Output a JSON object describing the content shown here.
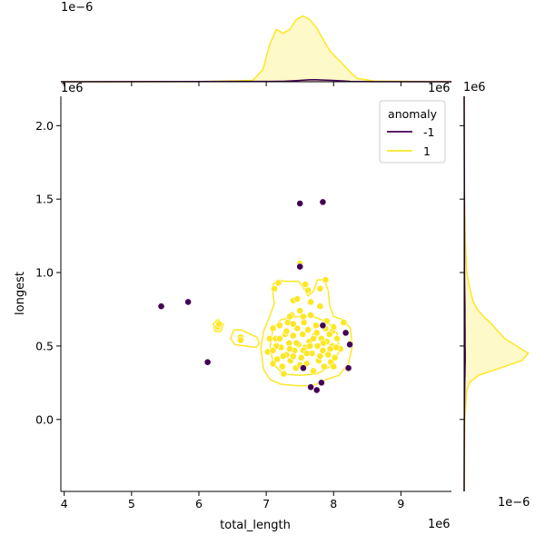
{
  "chart_data": {
    "type": "scatter",
    "xlabel": "total_length",
    "ylabel": "longest",
    "x_offset_label": "1e6",
    "y_offset_label": "1e6",
    "top_marginal_offset_label": "1e−6",
    "right_marginal_offset_label_top": "1e6",
    "right_marginal_offset_label_bottom": "1e−6",
    "top_marginal_right_offset_label": "1e6",
    "xlim": [
      3.95,
      9.75
    ],
    "ylim": [
      -0.49,
      2.2
    ],
    "x_ticks": [
      4,
      5,
      6,
      7,
      8,
      9
    ],
    "x_tick_labels": [
      "4",
      "5",
      "6",
      "7",
      "8",
      "9"
    ],
    "y_ticks": [
      0.0,
      0.5,
      1.0,
      1.5,
      2.0
    ],
    "y_tick_labels": [
      "0.0",
      "0.5",
      "1.0",
      "1.5",
      "2.0"
    ],
    "legend": {
      "title": "anomaly",
      "position": "top-right",
      "entries": [
        {
          "label": "-1",
          "color": "#440154"
        },
        {
          "label": "1",
          "color": "#fde725"
        }
      ]
    },
    "series": [
      {
        "name": "-1",
        "color": "#440154",
        "points": [
          [
            5.44,
            0.77
          ],
          [
            5.84,
            0.8
          ],
          [
            6.13,
            0.39
          ],
          [
            7.5,
            1.47
          ],
          [
            7.84,
            1.48
          ],
          [
            7.5,
            1.04
          ],
          [
            7.84,
            0.64
          ],
          [
            8.18,
            0.59
          ],
          [
            8.24,
            0.51
          ],
          [
            7.55,
            0.35
          ],
          [
            8.22,
            0.35
          ],
          [
            7.66,
            0.22
          ],
          [
            7.75,
            0.2
          ],
          [
            7.82,
            0.25
          ]
        ]
      },
      {
        "name": "1",
        "color": "#fde725",
        "points": [
          [
            6.28,
            0.63
          ],
          [
            6.3,
            0.65
          ],
          [
            6.62,
            0.56
          ],
          [
            6.62,
            0.54
          ],
          [
            7.5,
            1.06
          ],
          [
            7.12,
            0.89
          ],
          [
            7.18,
            0.93
          ],
          [
            7.4,
            0.81
          ],
          [
            7.58,
            0.92
          ],
          [
            7.8,
            0.89
          ],
          [
            7.88,
            0.95
          ],
          [
            7.62,
            0.88
          ],
          [
            7.98,
            0.6
          ],
          [
            8.05,
            0.55
          ],
          [
            8.1,
            0.48
          ],
          [
            8.15,
            0.66
          ],
          [
            8.25,
            0.52
          ],
          [
            7.05,
            0.55
          ],
          [
            7.02,
            0.46
          ],
          [
            7.1,
            0.38
          ],
          [
            7.1,
            0.62
          ],
          [
            7.14,
            0.55
          ],
          [
            7.16,
            0.41
          ],
          [
            7.2,
            0.64
          ],
          [
            7.22,
            0.49
          ],
          [
            7.24,
            0.36
          ],
          [
            7.26,
            0.31
          ],
          [
            7.28,
            0.58
          ],
          [
            7.3,
            0.44
          ],
          [
            7.32,
            0.66
          ],
          [
            7.34,
            0.52
          ],
          [
            7.36,
            0.4
          ],
          [
            7.38,
            0.71
          ],
          [
            7.4,
            0.57
          ],
          [
            7.42,
            0.47
          ],
          [
            7.44,
            0.35
          ],
          [
            7.46,
            0.62
          ],
          [
            7.48,
            0.51
          ],
          [
            7.5,
            0.74
          ],
          [
            7.52,
            0.42
          ],
          [
            7.54,
            0.58
          ],
          [
            7.56,
            0.66
          ],
          [
            7.58,
            0.49
          ],
          [
            7.6,
            0.38
          ],
          [
            7.62,
            0.61
          ],
          [
            7.64,
            0.53
          ],
          [
            7.66,
            0.71
          ],
          [
            7.68,
            0.45
          ],
          [
            7.7,
            0.33
          ],
          [
            7.72,
            0.57
          ],
          [
            7.74,
            0.64
          ],
          [
            7.76,
            0.5
          ],
          [
            7.78,
            0.4
          ],
          [
            7.8,
            0.77
          ],
          [
            7.82,
            0.55
          ],
          [
            7.84,
            0.47
          ],
          [
            7.86,
            0.36
          ],
          [
            7.88,
            0.62
          ],
          [
            7.9,
            0.53
          ],
          [
            7.92,
            0.44
          ],
          [
            7.94,
            0.58
          ],
          [
            7.96,
            0.39
          ],
          [
            7.98,
            0.5
          ],
          [
            8.0,
            0.63
          ],
          [
            8.02,
            0.42
          ],
          [
            8.04,
            0.49
          ],
          [
            7.2,
            0.55
          ],
          [
            7.35,
            0.48
          ],
          [
            7.45,
            0.52
          ],
          [
            7.55,
            0.47
          ],
          [
            7.65,
            0.5
          ],
          [
            7.75,
            0.59
          ],
          [
            7.85,
            0.52
          ],
          [
            7.95,
            0.48
          ],
          [
            7.3,
            0.6
          ],
          [
            7.4,
            0.43
          ],
          [
            7.6,
            0.45
          ],
          [
            7.7,
            0.55
          ],
          [
            7.9,
            0.67
          ],
          [
            7.15,
            0.5
          ],
          [
            7.25,
            0.43
          ],
          [
            7.5,
            0.37
          ],
          [
            7.8,
            0.43
          ],
          [
            7.66,
            0.8
          ],
          [
            7.46,
            0.82
          ],
          [
            7.35,
            0.7
          ],
          [
            7.55,
            0.7
          ],
          [
            7.1,
            0.47
          ],
          [
            8.0,
            0.36
          ],
          [
            7.4,
            0.65
          ]
        ]
      }
    ],
    "contours": {
      "1": {
        "color": "#fde725",
        "level": "outer",
        "polygons": [
          [
            [
              7.12,
              0.79
            ],
            [
              7.05,
              0.7
            ],
            [
              6.96,
              0.6
            ],
            [
              6.92,
              0.48
            ],
            [
              6.96,
              0.34
            ],
            [
              7.06,
              0.27
            ],
            [
              7.22,
              0.24
            ],
            [
              7.45,
              0.23
            ],
            [
              7.7,
              0.23
            ],
            [
              7.88,
              0.27
            ],
            [
              8.08,
              0.3
            ],
            [
              8.22,
              0.38
            ],
            [
              8.28,
              0.5
            ],
            [
              8.25,
              0.62
            ],
            [
              8.14,
              0.68
            ],
            [
              8.0,
              0.7
            ],
            [
              7.94,
              0.78
            ],
            [
              7.92,
              0.88
            ],
            [
              7.86,
              0.95
            ],
            [
              7.76,
              0.95
            ],
            [
              7.7,
              0.87
            ],
            [
              7.62,
              0.84
            ],
            [
              7.55,
              0.9
            ],
            [
              7.48,
              0.94
            ],
            [
              7.36,
              0.94
            ],
            [
              7.28,
              0.94
            ],
            [
              7.18,
              0.95
            ],
            [
              7.1,
              0.92
            ],
            [
              7.1,
              0.85
            ],
            [
              7.12,
              0.79
            ]
          ],
          [
            [
              6.63,
              0.61
            ],
            [
              6.52,
              0.61
            ],
            [
              6.47,
              0.55
            ],
            [
              6.53,
              0.51
            ],
            [
              6.69,
              0.5
            ],
            [
              6.85,
              0.49
            ],
            [
              6.9,
              0.52
            ],
            [
              6.86,
              0.56
            ],
            [
              6.72,
              0.59
            ],
            [
              6.63,
              0.61
            ]
          ],
          [
            [
              6.28,
              0.68
            ],
            [
              6.21,
              0.65
            ],
            [
              6.24,
              0.6
            ],
            [
              6.33,
              0.6
            ],
            [
              6.36,
              0.65
            ],
            [
              6.28,
              0.68
            ]
          ],
          [
            [
              6.28,
              0.66
            ],
            [
              6.25,
              0.64
            ],
            [
              6.28,
              0.62
            ],
            [
              6.32,
              0.63
            ],
            [
              6.3,
              0.66
            ],
            [
              6.28,
              0.66
            ]
          ],
          [
            [
              7.48,
              1.08
            ],
            [
              7.46,
              1.05
            ],
            [
              7.49,
              1.02
            ],
            [
              7.53,
              1.04
            ],
            [
              7.52,
              1.07
            ],
            [
              7.48,
              1.08
            ]
          ]
        ]
      },
      "1_inner": {
        "color": "#fde725",
        "polygons": [
          [
            [
              7.1,
              0.62
            ],
            [
              7.06,
              0.5
            ],
            [
              7.1,
              0.38
            ],
            [
              7.25,
              0.31
            ],
            [
              7.5,
              0.3
            ],
            [
              7.75,
              0.31
            ],
            [
              7.95,
              0.36
            ],
            [
              8.08,
              0.46
            ],
            [
              8.06,
              0.58
            ],
            [
              7.92,
              0.66
            ],
            [
              7.7,
              0.7
            ],
            [
              7.45,
              0.7
            ],
            [
              7.22,
              0.68
            ],
            [
              7.1,
              0.62
            ]
          ]
        ]
      }
    },
    "marginal_x_density": {
      "x": [
        3.95,
        6.0,
        6.8,
        6.95,
        7.05,
        7.15,
        7.25,
        7.35,
        7.45,
        7.55,
        7.65,
        7.75,
        7.85,
        7.95,
        8.05,
        8.15,
        8.25,
        8.35,
        8.6,
        9.75
      ],
      "fill_1": [
        0,
        0.002,
        0.02,
        0.18,
        0.55,
        0.78,
        0.72,
        0.78,
        0.93,
        0.98,
        0.92,
        0.8,
        0.62,
        0.45,
        0.35,
        0.25,
        0.14,
        0.05,
        0.01,
        0
      ],
      "fill_-1": [
        0,
        0.003,
        0.006,
        0.006,
        0.006,
        0.007,
        0.007,
        0.012,
        0.018,
        0.025,
        0.03,
        0.03,
        0.026,
        0.022,
        0.018,
        0.012,
        0.006,
        0.003,
        0.001,
        0
      ]
    },
    "marginal_y_density": {
      "y": [
        -0.49,
        0.0,
        0.2,
        0.25,
        0.3,
        0.35,
        0.4,
        0.45,
        0.5,
        0.55,
        0.6,
        0.65,
        0.7,
        0.75,
        0.8,
        0.9,
        1.0,
        1.2,
        1.5,
        2.2
      ],
      "fill_1": [
        0,
        0.01,
        0.04,
        0.08,
        0.22,
        0.55,
        0.88,
        0.98,
        0.8,
        0.62,
        0.52,
        0.42,
        0.3,
        0.2,
        0.14,
        0.08,
        0.04,
        0.02,
        0.005,
        0
      ],
      "fill_-1": [
        0,
        0.003,
        0.008,
        0.01,
        0.012,
        0.014,
        0.016,
        0.016,
        0.014,
        0.014,
        0.014,
        0.013,
        0.012,
        0.012,
        0.011,
        0.008,
        0.006,
        0.005,
        0.004,
        0
      ]
    }
  }
}
